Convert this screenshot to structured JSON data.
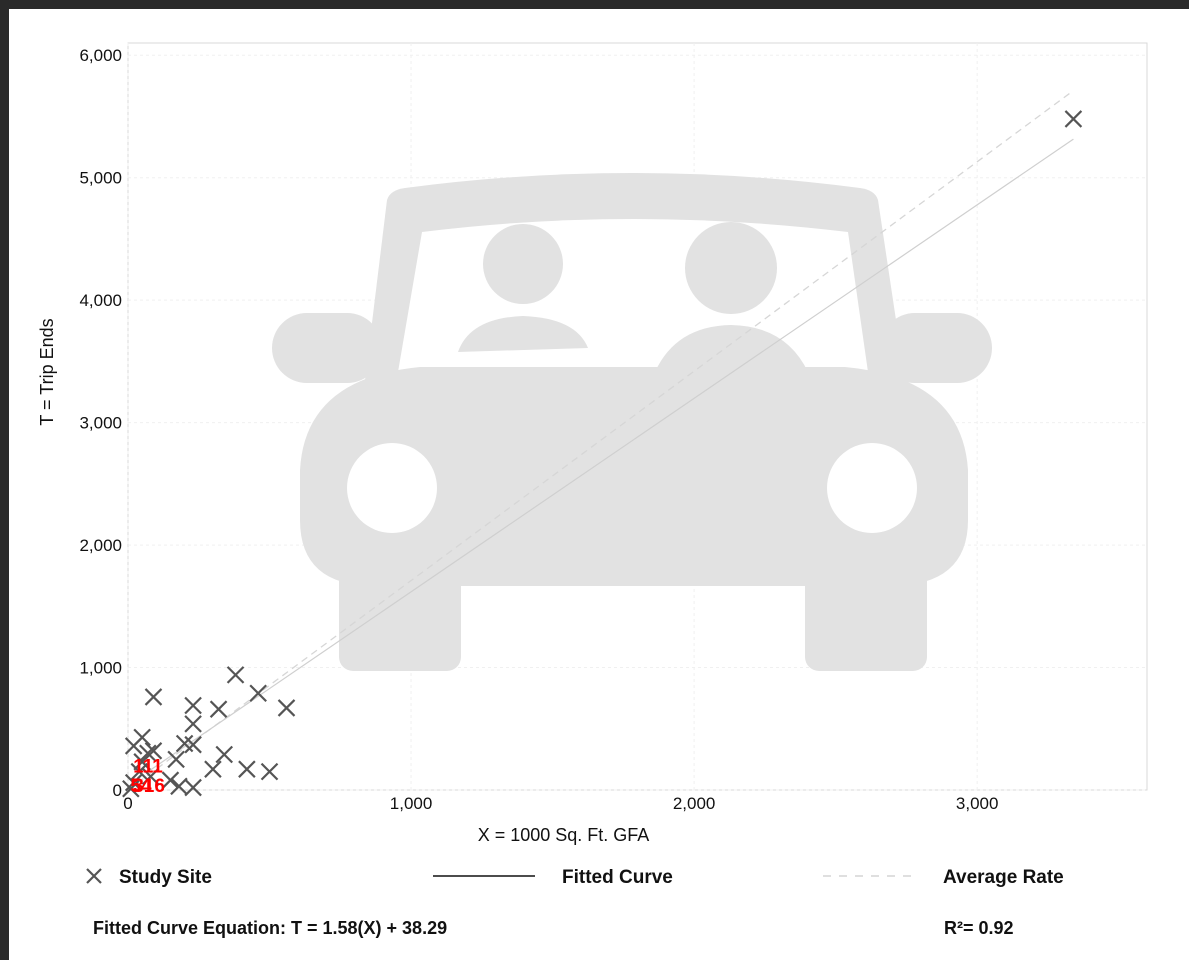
{
  "chart_data": {
    "type": "scatter",
    "xlabel": "X = 1000 Sq. Ft. GFA",
    "ylabel": "T = Trip Ends",
    "xlim": [
      0,
      3600
    ],
    "ylim": [
      0,
      6100
    ],
    "xticks": [
      0,
      1000,
      2000,
      3000
    ],
    "xtick_labels": [
      "0",
      "1,000",
      "2,000",
      "3,000"
    ],
    "yticks": [
      0,
      1000,
      2000,
      3000,
      4000,
      5000,
      6000
    ],
    "ytick_labels": [
      "0",
      "1,000",
      "2,000",
      "3,000",
      "4,000",
      "5,000",
      "6,000"
    ],
    "grid": true,
    "points": [
      {
        "x": 3340,
        "y": 5480
      },
      {
        "x": 380,
        "y": 940
      },
      {
        "x": 460,
        "y": 790
      },
      {
        "x": 560,
        "y": 670
      },
      {
        "x": 90,
        "y": 760
      },
      {
        "x": 230,
        "y": 690
      },
      {
        "x": 320,
        "y": 660
      },
      {
        "x": 230,
        "y": 540
      },
      {
        "x": 50,
        "y": 430
      },
      {
        "x": 20,
        "y": 360
      },
      {
        "x": 200,
        "y": 380
      },
      {
        "x": 230,
        "y": 370
      },
      {
        "x": 90,
        "y": 320
      },
      {
        "x": 70,
        "y": 300
      },
      {
        "x": 340,
        "y": 290
      },
      {
        "x": 170,
        "y": 250
      },
      {
        "x": 50,
        "y": 230
      },
      {
        "x": 300,
        "y": 170
      },
      {
        "x": 420,
        "y": 170
      },
      {
        "x": 500,
        "y": 150
      },
      {
        "x": 40,
        "y": 150
      },
      {
        "x": 80,
        "y": 110
      },
      {
        "x": 150,
        "y": 80
      },
      {
        "x": 20,
        "y": 60
      },
      {
        "x": 180,
        "y": 30
      },
      {
        "x": 230,
        "y": 20
      },
      {
        "x": 10,
        "y": 10
      }
    ],
    "annotations": [
      {
        "text": "111",
        "x": 15,
        "y": 210
      },
      {
        "text": "316",
        "x": 15,
        "y": 50
      },
      {
        "text": "54",
        "x": 5,
        "y": 50
      }
    ],
    "fitted_curve": {
      "slope": 1.58,
      "intercept": 38.29,
      "x_range": [
        80,
        3340
      ]
    },
    "average_rate": {
      "slope": 1.71,
      "x_range": [
        0,
        3340
      ]
    },
    "legend": {
      "study_site": "Study Site",
      "fitted_curve": "Fitted Curve",
      "average_rate": "Average Rate"
    },
    "equation": "Fitted Curve Equation: T = 1.58(X) + 38.29",
    "r_squared": "R²= 0.92",
    "colors": {
      "points": "#555555",
      "annotation": "#ff0000",
      "fitted_line": "#cfcfcf",
      "average_line": "#d6d6d6",
      "watermark": "#e2e2e2",
      "border": "#2a2a2a",
      "axis": "#d9d9d9"
    },
    "watermark_icon": "car-with-driver-icon"
  }
}
